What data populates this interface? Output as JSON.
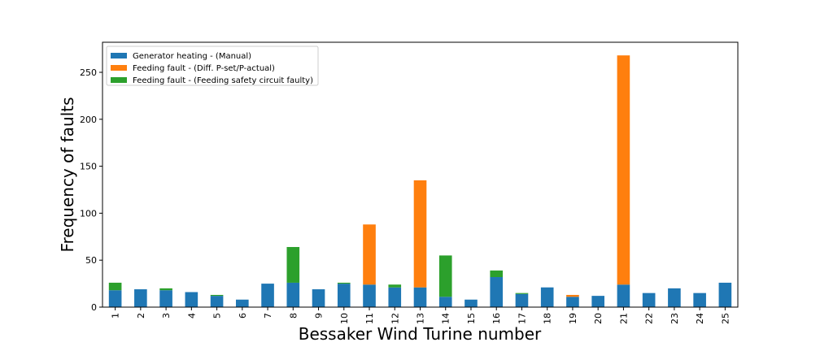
{
  "chart_data": {
    "type": "bar",
    "stacked": true,
    "title": "",
    "xlabel": "Bessaker Wind Turine number",
    "ylabel": "Frequency of faults",
    "categories": [
      "1",
      "2",
      "3",
      "4",
      "5",
      "6",
      "7",
      "8",
      "9",
      "10",
      "11",
      "12",
      "13",
      "14",
      "15",
      "16",
      "17",
      "18",
      "19",
      "20",
      "21",
      "22",
      "23",
      "24",
      "25"
    ],
    "ylim": [
      0,
      282
    ],
    "yticks": [
      0,
      50,
      100,
      150,
      200,
      250
    ],
    "legend_position": "top-left",
    "grid": false,
    "series": [
      {
        "name": "Generator heating - (Manual)",
        "color": "#1f77b4",
        "values": [
          18,
          19,
          18,
          16,
          12,
          8,
          25,
          26,
          19,
          25,
          24,
          21,
          21,
          11,
          8,
          32,
          14,
          21,
          11,
          12,
          24,
          15,
          20,
          15,
          26
        ]
      },
      {
        "name": "Feeding fault - (Diff. P-set/P-actual)",
        "color": "#ff7f0e",
        "values": [
          0,
          0,
          0,
          0,
          0,
          0,
          0,
          0,
          0,
          0,
          64,
          0,
          114,
          0,
          0,
          0,
          0,
          0,
          2,
          0,
          244,
          0,
          0,
          0,
          0
        ]
      },
      {
        "name": "Feeding fault - (Feeding safety circuit faulty)",
        "color": "#2ca02c",
        "values": [
          8,
          0,
          2,
          0,
          1,
          0,
          0,
          38,
          0,
          1,
          0,
          3,
          0,
          44,
          0,
          7,
          1,
          0,
          0,
          0,
          0,
          0,
          0,
          0,
          0
        ]
      }
    ]
  }
}
